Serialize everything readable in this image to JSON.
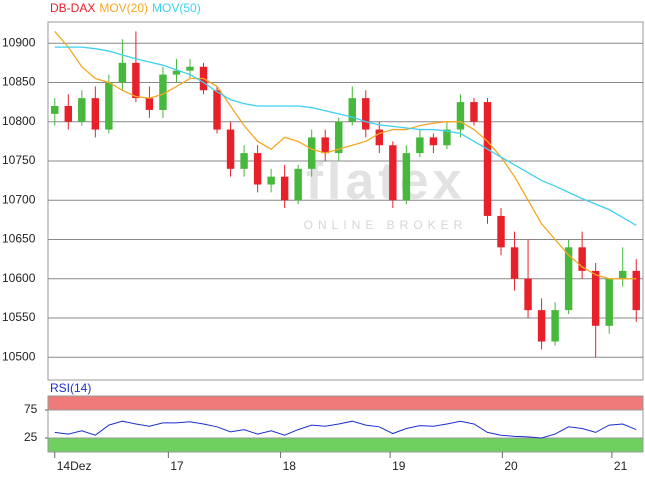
{
  "chart_data": [
    {
      "type": "candlestick",
      "legend": [
        {
          "name": "DB-DAX",
          "color": "#e8202a"
        },
        {
          "name": "MOV(20)",
          "color": "#f5a623"
        },
        {
          "name": "MOV(50)",
          "color": "#3fd0f0"
        }
      ],
      "watermark": {
        "brand": "flatex",
        "tagline": "ONLINE BROKER"
      },
      "x": [
        0,
        1,
        2,
        3,
        4,
        5,
        6,
        7,
        8,
        9,
        10,
        11,
        12,
        13,
        14,
        15,
        16,
        17,
        18,
        19,
        20,
        21,
        22,
        23,
        24,
        25,
        26,
        27,
        28,
        29,
        30,
        31,
        32,
        33,
        34,
        35,
        36,
        37,
        38,
        39,
        40,
        41,
        42,
        43
      ],
      "open": [
        10810,
        10820,
        10800,
        10830,
        10790,
        10850,
        10875,
        10830,
        10815,
        10860,
        10865,
        10870,
        10840,
        10790,
        10740,
        10760,
        10720,
        10730,
        10700,
        10740,
        10780,
        10760,
        10800,
        10830,
        10790,
        10770,
        10700,
        10760,
        10780,
        10770,
        10790,
        10825,
        10825,
        10680,
        10640,
        10600,
        10560,
        10520,
        10560,
        10640,
        10610,
        10540,
        10600,
        10610
      ],
      "high": [
        10830,
        10835,
        10840,
        10845,
        10860,
        10905,
        10915,
        10845,
        10870,
        10880,
        10880,
        10875,
        10845,
        10800,
        10770,
        10770,
        10740,
        10745,
        10745,
        10790,
        10790,
        10805,
        10845,
        10840,
        10800,
        10775,
        10770,
        10790,
        10785,
        10800,
        10835,
        10830,
        10830,
        10690,
        10660,
        10650,
        10575,
        10570,
        10650,
        10660,
        10620,
        10600,
        10640,
        10625
      ],
      "low": [
        10795,
        10790,
        10795,
        10780,
        10785,
        10840,
        10825,
        10805,
        10805,
        10850,
        10855,
        10835,
        10785,
        10730,
        10730,
        10710,
        10710,
        10690,
        10695,
        10730,
        10750,
        10750,
        10795,
        10780,
        10760,
        10690,
        10695,
        10755,
        10760,
        10765,
        10780,
        10795,
        10670,
        10630,
        10585,
        10550,
        10510,
        10515,
        10555,
        10600,
        10500,
        10530,
        10590,
        10545
      ],
      "close": [
        10820,
        10800,
        10830,
        10790,
        10850,
        10875,
        10830,
        10815,
        10860,
        10865,
        10870,
        10840,
        10790,
        10740,
        10760,
        10720,
        10730,
        10700,
        10740,
        10780,
        10760,
        10800,
        10830,
        10790,
        10770,
        10700,
        10760,
        10780,
        10770,
        10790,
        10825,
        10800,
        10680,
        10640,
        10600,
        10560,
        10520,
        10560,
        10640,
        10610,
        10540,
        10600,
        10610,
        10560
      ],
      "up_color": "#46b83c",
      "down_color": "#e8202a",
      "series": [
        {
          "name": "MOV(20)",
          "color": "#f5a623",
          "values": [
            10915,
            10895,
            10870,
            10855,
            10850,
            10840,
            10832,
            10830,
            10835,
            10845,
            10855,
            10855,
            10845,
            10820,
            10795,
            10775,
            10765,
            10780,
            10775,
            10765,
            10760,
            10765,
            10770,
            10775,
            10785,
            10790,
            10790,
            10795,
            10798,
            10800,
            10800,
            10790,
            10775,
            10755,
            10730,
            10700,
            10670,
            10650,
            10630,
            10615,
            10605,
            10600,
            10600,
            10600
          ]
        },
        {
          "name": "MOV(50)",
          "color": "#3fd0f0",
          "values": [
            10895,
            10895,
            10895,
            10893,
            10890,
            10885,
            10880,
            10876,
            10872,
            10866,
            10860,
            10850,
            10838,
            10828,
            10823,
            10820,
            10820,
            10820,
            10820,
            10818,
            10814,
            10810,
            10806,
            10800,
            10796,
            10794,
            10792,
            10790,
            10790,
            10788,
            10785,
            10775,
            10765,
            10755,
            10745,
            10735,
            10725,
            10718,
            10710,
            10702,
            10695,
            10688,
            10678,
            10668
          ]
        }
      ],
      "xlim": [
        -0.5,
        43.5
      ],
      "ylim": [
        10471,
        10927
      ],
      "yticks": [
        10500,
        10550,
        10600,
        10650,
        10700,
        10750,
        10800,
        10850,
        10900
      ],
      "grid": true
    },
    {
      "type": "line",
      "title": "RSI(14)",
      "x": [
        0,
        1,
        2,
        3,
        4,
        5,
        6,
        7,
        8,
        9,
        10,
        11,
        12,
        13,
        14,
        15,
        16,
        17,
        18,
        19,
        20,
        21,
        22,
        23,
        24,
        25,
        26,
        27,
        28,
        29,
        30,
        31,
        32,
        33,
        34,
        35,
        36,
        37,
        38,
        39,
        40,
        41,
        42,
        43
      ],
      "series": [
        {
          "name": "RSI(14)",
          "color": "#1c2fd0",
          "values": [
            35,
            32,
            38,
            30,
            48,
            55,
            50,
            46,
            52,
            52,
            54,
            50,
            45,
            36,
            40,
            32,
            38,
            30,
            40,
            48,
            46,
            50,
            55,
            48,
            45,
            33,
            42,
            47,
            46,
            50,
            55,
            50,
            35,
            30,
            28,
            27,
            25,
            32,
            45,
            42,
            35,
            48,
            50,
            40
          ]
        }
      ],
      "bands": [
        {
          "from": 75,
          "to": 100,
          "color": "#f07a7a"
        },
        {
          "from": 0,
          "to": 25,
          "color": "#6fcf5f"
        }
      ],
      "xlim": [
        -0.5,
        43.5
      ],
      "ylim": [
        0,
        100
      ],
      "yticks": [
        25,
        75
      ],
      "xticks": [
        {
          "value": 0,
          "label": "14Dez"
        },
        {
          "value": 8.4,
          "label": "17"
        },
        {
          "value": 16.7,
          "label": "18"
        },
        {
          "value": 24.8,
          "label": "19"
        },
        {
          "value": 33.1,
          "label": "20"
        },
        {
          "value": 41.2,
          "label": "21"
        }
      ]
    }
  ]
}
